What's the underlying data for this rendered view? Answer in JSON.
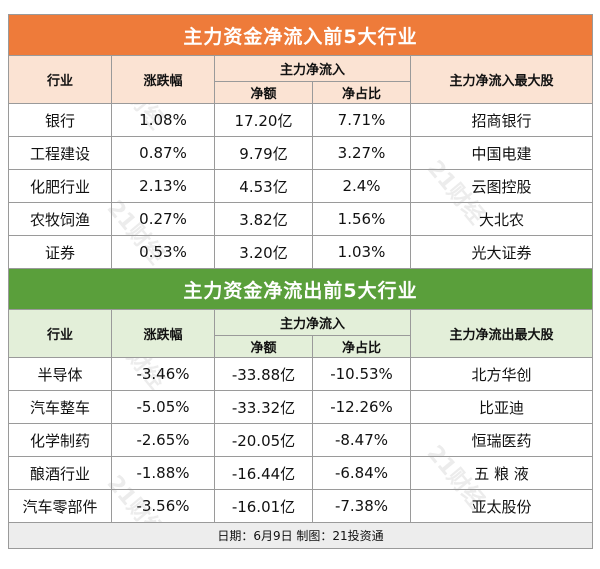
{
  "inflow": {
    "title": "主力资金净流入前5大行业",
    "headers": {
      "industry": "行业",
      "change": "涨跌幅",
      "main_flow": "主力净流入",
      "net_amount": "净额",
      "net_ratio": "净占比",
      "top_stock": "主力净流入最大股"
    },
    "rows": [
      {
        "industry": "银行",
        "change": "1.08%",
        "net_amount": "17.20亿",
        "net_ratio": "7.71%",
        "top_stock": "招商银行"
      },
      {
        "industry": "工程建设",
        "change": "0.87%",
        "net_amount": "9.79亿",
        "net_ratio": "3.27%",
        "top_stock": "中国电建"
      },
      {
        "industry": "化肥行业",
        "change": "2.13%",
        "net_amount": "4.53亿",
        "net_ratio": "2.4%",
        "top_stock": "云图控股"
      },
      {
        "industry": "农牧饲渔",
        "change": "0.27%",
        "net_amount": "3.82亿",
        "net_ratio": "1.56%",
        "top_stock": "大北农"
      },
      {
        "industry": "证券",
        "change": "0.53%",
        "net_amount": "3.20亿",
        "net_ratio": "1.03%",
        "top_stock": "光大证券"
      }
    ]
  },
  "outflow": {
    "title": "主力资金净流出前5大行业",
    "headers": {
      "industry": "行业",
      "change": "涨跌幅",
      "main_flow": "主力净流入",
      "net_amount": "净额",
      "net_ratio": "净占比",
      "top_stock": "主力净流出最大股"
    },
    "rows": [
      {
        "industry": "半导体",
        "change": "-3.46%",
        "net_amount": "-33.88亿",
        "net_ratio": "-10.53%",
        "top_stock": "北方华创"
      },
      {
        "industry": "汽车整车",
        "change": "-5.05%",
        "net_amount": "-33.32亿",
        "net_ratio": "-12.26%",
        "top_stock": "比亚迪"
      },
      {
        "industry": "化学制药",
        "change": "-2.65%",
        "net_amount": "-20.05亿",
        "net_ratio": "-8.47%",
        "top_stock": "恒瑞医药"
      },
      {
        "industry": "酿酒行业",
        "change": "-1.88%",
        "net_amount": "-16.44亿",
        "net_ratio": "-6.84%",
        "top_stock": "五 粮 液"
      },
      {
        "industry": "汽车零部件",
        "change": "-3.56%",
        "net_amount": "-16.01亿",
        "net_ratio": "-7.38%",
        "top_stock": "亚太股份"
      }
    ]
  },
  "footer": "日期：6月9日 制图：21投资通",
  "watermark": "21财经",
  "colors": {
    "inflow_banner": "#ee7b3a",
    "outflow_banner": "#5a9f3b"
  }
}
